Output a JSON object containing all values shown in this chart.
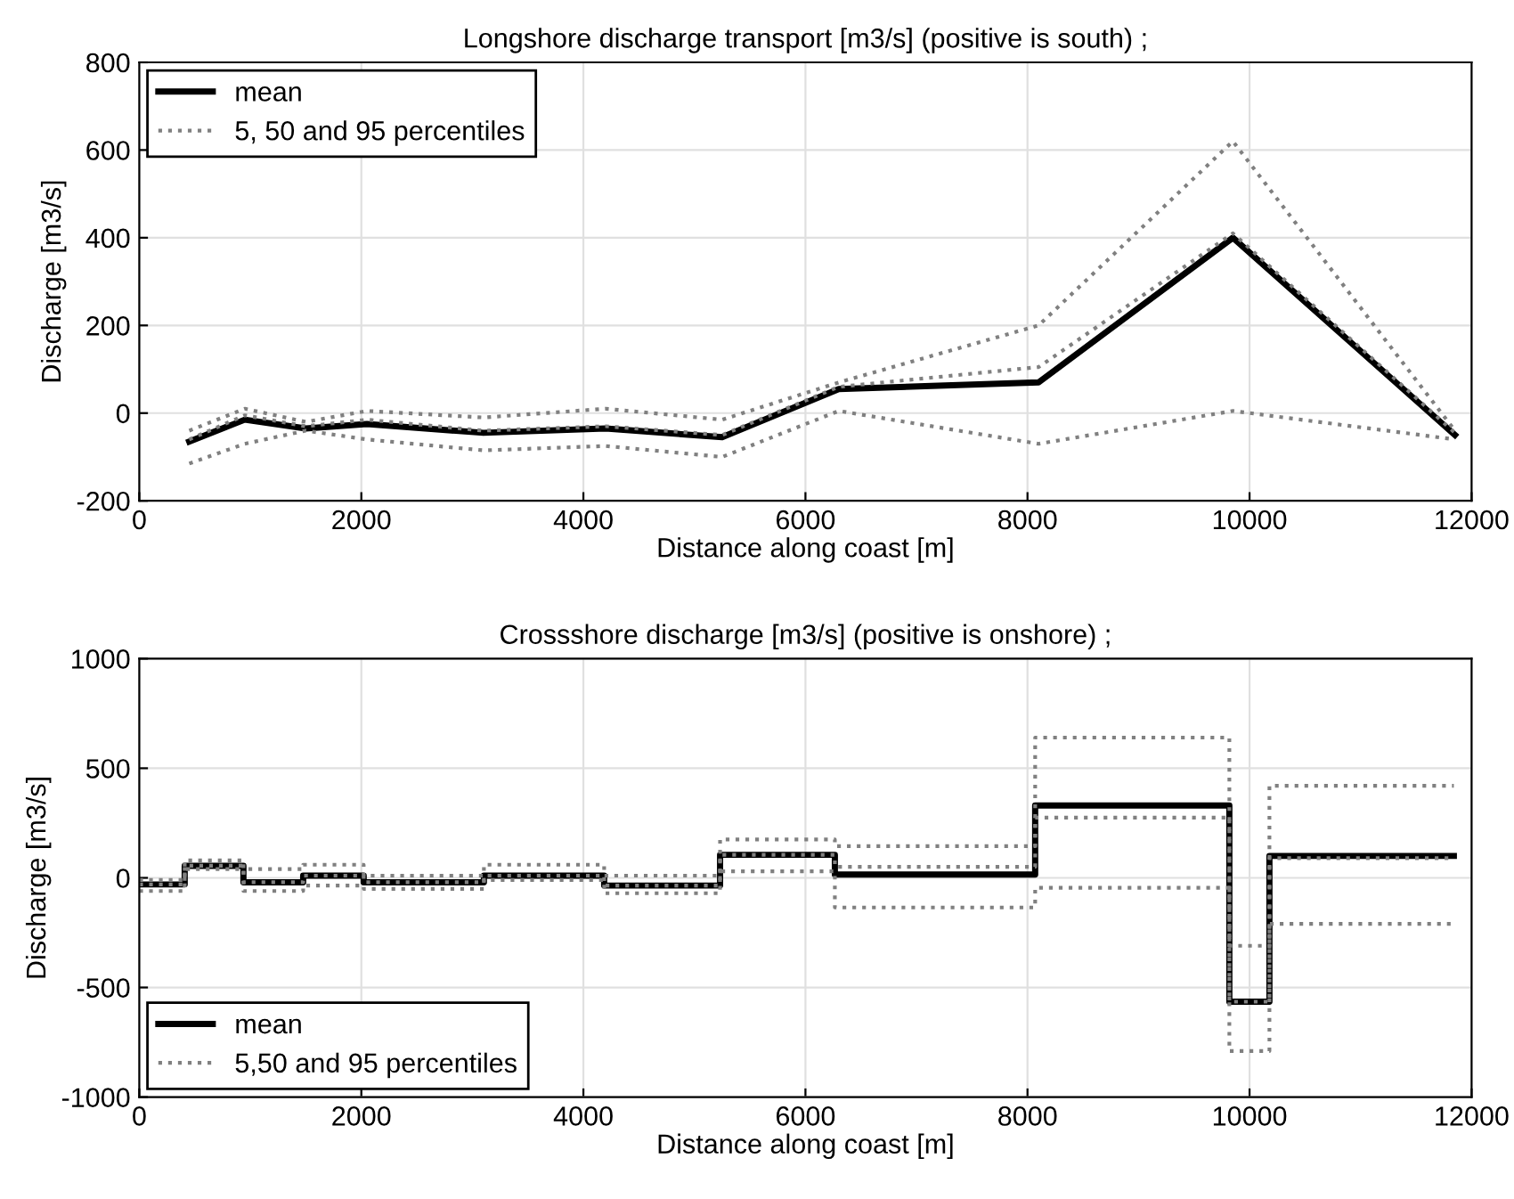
{
  "chart_data": [
    {
      "type": "line",
      "title": "Longshore discharge transport [m3/s] (positive is south) ;",
      "xlabel": "Distance along coast [m]",
      "ylabel": "Discharge [m3/s]",
      "x": [
        450,
        950,
        1500,
        2050,
        3100,
        4200,
        5250,
        6300,
        8100,
        9850,
        11850
      ],
      "series": [
        {
          "name": "mean",
          "color": "#000000",
          "line_style": "solid",
          "values": [
            -65,
            -15,
            -35,
            -25,
            -45,
            -35,
            -55,
            55,
            70,
            400,
            -50
          ]
        },
        {
          "name": "5, 50 and 95 percentiles",
          "color": "#808080",
          "line_style": "dotted",
          "values": [
            -115,
            -70,
            -40,
            -60,
            -85,
            -75,
            -100,
            5,
            -70,
            5,
            -60
          ]
        },
        {
          "color": "#808080",
          "line_style": "dotted",
          "values": [
            -60,
            -5,
            -30,
            -15,
            -40,
            -30,
            -50,
            60,
            105,
            410,
            -45
          ]
        },
        {
          "color": "#808080",
          "line_style": "dotted",
          "values": [
            -40,
            10,
            -20,
            5,
            -10,
            10,
            -15,
            70,
            200,
            620,
            -40
          ]
        }
      ],
      "xlim": [
        0,
        12000
      ],
      "xticks": [
        0,
        2000,
        4000,
        6000,
        8000,
        10000,
        12000
      ],
      "ylim": [
        -200,
        800
      ],
      "yticks": [
        -200,
        0,
        200,
        400,
        600,
        800
      ],
      "grid": true,
      "legend": "top left"
    },
    {
      "type": "step",
      "title": "Crossshore discharge [m3/s] (positive is onshore) ;",
      "xlabel": "Distance along coast [m]",
      "ylabel": "Discharge [m3/s]",
      "x": [
        0,
        409,
        938,
        1476,
        2021,
        3104,
        4187,
        5231,
        6265,
        8069,
        9818,
        10179,
        11840
      ],
      "series": [
        {
          "name": "mean",
          "color": "#000000",
          "line_style": "solid",
          "values": [
            -30,
            55,
            -20,
            10,
            -20,
            10,
            -35,
            105,
            15,
            330,
            -565,
            100,
            100
          ]
        },
        {
          "name": "5,50 and 95 percentiles",
          "color": "#808080",
          "line_style": "dotted",
          "values": [
            -60,
            40,
            -60,
            -35,
            -50,
            -10,
            -70,
            30,
            -135,
            -45,
            -790,
            -210,
            -210
          ]
        },
        {
          "color": "#808080",
          "line_style": "dotted",
          "values": [
            -30,
            55,
            -20,
            10,
            -20,
            10,
            -35,
            105,
            50,
            275,
            -565,
            90,
            90
          ]
        },
        {
          "color": "#808080",
          "line_style": "dotted",
          "values": [
            -10,
            80,
            40,
            60,
            10,
            60,
            10,
            175,
            145,
            640,
            -310,
            420,
            420
          ]
        }
      ],
      "xlim": [
        0,
        12000
      ],
      "xticks": [
        0,
        2000,
        4000,
        6000,
        8000,
        10000,
        12000
      ],
      "ylim": [
        -1000,
        1000
      ],
      "yticks": [
        -1000,
        -500,
        0,
        500,
        1000
      ],
      "grid": true,
      "legend": "bottom left"
    }
  ]
}
